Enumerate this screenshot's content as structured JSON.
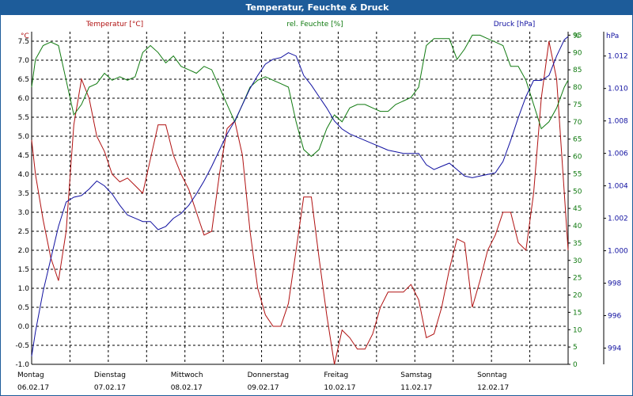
{
  "window": {
    "title": "Temperatur, Feuchte & Druck"
  },
  "colors": {
    "temperature": "#b01010",
    "humidity": "#107a10",
    "pressure": "#1010a0",
    "titlebar": "#1d5c9a",
    "grid": "#000000"
  },
  "chart_data": {
    "type": "line",
    "title": "Temperatur, Feuchte & Druck",
    "legend": [
      "Temperatur [°C]",
      "rel. Feuchte [%]",
      "Druck [hPa]"
    ],
    "axes": {
      "left": {
        "unit": "°C",
        "ylim": [
          -1.0,
          7.75
        ],
        "ticks": [
          "-1.0",
          "-0.5",
          "0.0",
          "0.5",
          "1.0",
          "1.5",
          "2.0",
          "2.5",
          "3.0",
          "3.5",
          "4.0",
          "4.5",
          "5.0",
          "5.5",
          "6.0",
          "6.5",
          "7.0",
          "7.5"
        ]
      },
      "right1": {
        "unit": "%",
        "ylim": [
          0,
          96
        ],
        "ticks": [
          "0",
          "5",
          "10",
          "15",
          "20",
          "25",
          "30",
          "35",
          "40",
          "45",
          "50",
          "55",
          "60",
          "65",
          "70",
          "75",
          "80",
          "85",
          "90",
          "95"
        ],
        "top_label": "%"
      },
      "right2": {
        "unit": "hPa",
        "ylim": [
          993,
          1013.5
        ],
        "ticks": [
          "994",
          "996",
          "998",
          "1.000",
          "1.002",
          "1.004",
          "1.006",
          "1.008",
          "1.010",
          "1.012"
        ]
      }
    },
    "x_days": [
      {
        "name": "Montag",
        "date": "06.02.17"
      },
      {
        "name": "Dienstag",
        "date": "07.02.17"
      },
      {
        "name": "Mittwoch",
        "date": "08.02.17"
      },
      {
        "name": "Donnerstag",
        "date": "09.02.17"
      },
      {
        "name": "Freitag",
        "date": "10.02.17"
      },
      {
        "name": "Samstag",
        "date": "11.02.17"
      },
      {
        "name": "Sonntag",
        "date": "12.02.17"
      }
    ],
    "x_range_days": [
      0,
      7
    ],
    "series": [
      {
        "name": "Temperatur [°C]",
        "axis": "left",
        "x": [
          0,
          0.05,
          0.15,
          0.25,
          0.35,
          0.45,
          0.55,
          0.65,
          0.75,
          0.85,
          0.95,
          1.05,
          1.15,
          1.25,
          1.35,
          1.45,
          1.55,
          1.65,
          1.75,
          1.85,
          1.95,
          2.05,
          2.15,
          2.25,
          2.35,
          2.45,
          2.55,
          2.65,
          2.75,
          2.85,
          2.95,
          3.05,
          3.15,
          3.25,
          3.35,
          3.45,
          3.55,
          3.65,
          3.75,
          3.85,
          3.95,
          4.05,
          4.15,
          4.25,
          4.35,
          4.45,
          4.55,
          4.65,
          4.75,
          4.85,
          4.95,
          5.05,
          5.15,
          5.25,
          5.35,
          5.45,
          5.55,
          5.65,
          5.75,
          5.85,
          5.95,
          6.05,
          6.15,
          6.25,
          6.35,
          6.45,
          6.55,
          6.65,
          6.75,
          6.85,
          6.95,
          7.0
        ],
        "values": [
          4.9,
          4.0,
          2.8,
          1.8,
          1.2,
          2.5,
          5.3,
          6.5,
          6.0,
          5.0,
          4.6,
          4.0,
          3.8,
          3.9,
          3.7,
          3.5,
          4.4,
          5.3,
          5.3,
          4.5,
          4.0,
          3.6,
          3.0,
          2.4,
          2.5,
          4.0,
          5.2,
          5.4,
          4.5,
          2.5,
          1.0,
          0.3,
          0.0,
          0.0,
          0.6,
          2.0,
          3.4,
          3.4,
          1.8,
          0.3,
          -1.0,
          -0.1,
          -0.3,
          -0.6,
          -0.6,
          -0.2,
          0.5,
          0.9,
          0.9,
          0.9,
          1.1,
          0.7,
          -0.3,
          -0.2,
          0.5,
          1.5,
          2.3,
          2.2,
          0.5,
          1.2,
          2.0,
          2.4,
          3.0,
          3.0,
          2.2,
          2.0,
          3.5,
          6.0,
          7.5,
          6.5,
          3.5,
          2.0
        ]
      },
      {
        "name": "rel. Feuchte [%]",
        "axis": "right1",
        "x": [
          0,
          0.05,
          0.15,
          0.25,
          0.35,
          0.45,
          0.55,
          0.65,
          0.75,
          0.85,
          0.95,
          1.05,
          1.15,
          1.25,
          1.35,
          1.45,
          1.55,
          1.65,
          1.75,
          1.85,
          1.95,
          2.05,
          2.15,
          2.25,
          2.35,
          2.45,
          2.55,
          2.65,
          2.75,
          2.85,
          2.95,
          3.05,
          3.15,
          3.25,
          3.35,
          3.45,
          3.55,
          3.65,
          3.75,
          3.85,
          3.95,
          4.05,
          4.15,
          4.25,
          4.35,
          4.45,
          4.55,
          4.65,
          4.75,
          4.85,
          4.95,
          5.05,
          5.15,
          5.25,
          5.35,
          5.45,
          5.55,
          5.65,
          5.75,
          5.85,
          5.95,
          6.05,
          6.15,
          6.25,
          6.35,
          6.45,
          6.55,
          6.65,
          6.75,
          6.85,
          6.95,
          7.0
        ],
        "values": [
          80,
          88,
          92,
          93,
          92,
          82,
          72,
          75,
          80,
          81,
          84,
          82,
          83,
          82,
          83,
          90,
          92,
          90,
          87,
          89,
          86,
          85,
          84,
          86,
          85,
          80,
          75,
          70,
          75,
          80,
          82,
          83,
          82,
          81,
          80,
          70,
          62,
          60,
          62,
          68,
          72,
          70,
          74,
          75,
          75,
          74,
          73,
          73,
          75,
          76,
          77,
          80,
          92,
          94,
          94,
          94,
          88,
          91,
          95,
          95,
          94,
          93,
          92,
          86,
          86,
          82,
          75,
          68,
          70,
          74,
          80,
          82
        ]
      },
      {
        "name": "Druck [hPa]",
        "axis": "right2",
        "x": [
          0,
          0.05,
          0.15,
          0.25,
          0.35,
          0.45,
          0.55,
          0.65,
          0.75,
          0.85,
          0.95,
          1.05,
          1.15,
          1.25,
          1.35,
          1.45,
          1.55,
          1.65,
          1.75,
          1.85,
          1.95,
          2.05,
          2.15,
          2.25,
          2.35,
          2.45,
          2.55,
          2.65,
          2.75,
          2.85,
          2.95,
          3.05,
          3.15,
          3.25,
          3.35,
          3.45,
          3.55,
          3.65,
          3.75,
          3.85,
          3.95,
          4.05,
          4.15,
          4.25,
          4.35,
          4.45,
          4.55,
          4.65,
          4.75,
          4.85,
          4.95,
          5.05,
          5.15,
          5.25,
          5.35,
          5.45,
          5.55,
          5.65,
          5.75,
          5.85,
          5.95,
          6.05,
          6.15,
          6.25,
          6.35,
          6.45,
          6.55,
          6.65,
          6.75,
          6.85,
          6.95,
          7.0
        ],
        "values": [
          993.5,
          995.0,
          997.5,
          999.5,
          1001.5,
          1003.0,
          1003.3,
          1003.4,
          1003.8,
          1004.3,
          1004.0,
          1003.5,
          1002.8,
          1002.2,
          1002.0,
          1001.8,
          1001.8,
          1001.3,
          1001.5,
          1002.0,
          1002.3,
          1002.8,
          1003.5,
          1004.3,
          1005.2,
          1006.2,
          1007.2,
          1008.0,
          1009.0,
          1010.0,
          1010.8,
          1011.5,
          1011.8,
          1011.9,
          1012.2,
          1012.0,
          1010.8,
          1010.2,
          1009.5,
          1008.8,
          1008.0,
          1007.5,
          1007.2,
          1007.0,
          1006.8,
          1006.6,
          1006.4,
          1006.2,
          1006.1,
          1006.0,
          1006.0,
          1006.0,
          1005.3,
          1005.0,
          1005.2,
          1005.4,
          1005.0,
          1004.6,
          1004.5,
          1004.6,
          1004.7,
          1004.8,
          1005.5,
          1006.8,
          1008.2,
          1009.5,
          1010.5,
          1010.5,
          1010.8,
          1012.0,
          1013.0,
          1013.2
        ]
      }
    ]
  }
}
